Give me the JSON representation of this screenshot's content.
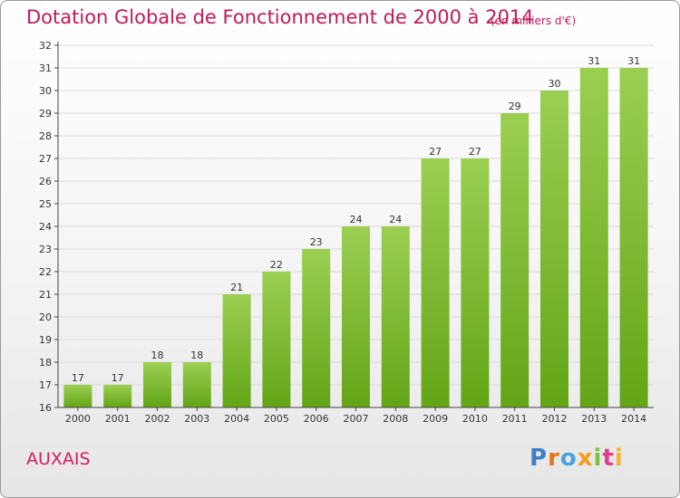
{
  "header": {
    "title": "Dotation Globale de Fonctionnement de 2000 à 2014",
    "subtitle": "(en milliers d'€)"
  },
  "footer": {
    "commune": "AUXAIS",
    "logo_text": "Proxiti",
    "logo_letter_colors": [
      "#3f7fc9",
      "#e8731a",
      "#4aa3df",
      "#f29d1f",
      "#7cc242",
      "#e23d8b",
      "#f2b233"
    ]
  },
  "colors": {
    "bar_top": "#9bcf52",
    "bar_bottom": "#63a516",
    "grid": "#dadada",
    "axis": "#444444",
    "text": "#333333"
  },
  "chart_data": {
    "type": "bar",
    "title": "Dotation Globale de Fonctionnement de 2000 à 2014",
    "subtitle": "(en milliers d'€)",
    "categories": [
      "2000",
      "2001",
      "2002",
      "2003",
      "2004",
      "2005",
      "2006",
      "2007",
      "2008",
      "2009",
      "2010",
      "2011",
      "2012",
      "2013",
      "2014"
    ],
    "values": [
      17,
      17,
      18,
      18,
      21,
      22,
      23,
      24,
      24,
      27,
      27,
      29,
      30,
      31,
      31
    ],
    "ylim": [
      16,
      32
    ],
    "yticks": [
      16,
      17,
      18,
      19,
      20,
      21,
      22,
      23,
      24,
      25,
      26,
      27,
      28,
      29,
      30,
      31,
      32
    ],
    "xlabel": "",
    "ylabel": "",
    "grid": true,
    "data_labels": true
  }
}
